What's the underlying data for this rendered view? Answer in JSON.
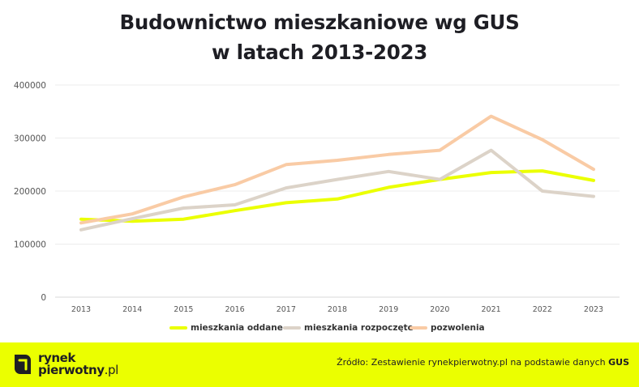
{
  "title_line1": "Budownictwo mieszkaniowe wg GUS",
  "title_line2": "w latach 2013-2023",
  "colors": {
    "background": "#ffffff",
    "footer_background": "#EBFF00",
    "grid": "#ececec",
    "axis_text": "#555555"
  },
  "chart_data": {
    "type": "line",
    "title": "Budownictwo mieszkaniowe wg GUS w latach 2013-2023",
    "categories": [
      "2013",
      "2014",
      "2015",
      "2016",
      "2017",
      "2018",
      "2019",
      "2020",
      "2021",
      "2022",
      "2023"
    ],
    "ylim": [
      0,
      400000
    ],
    "yticks": [
      0,
      100000,
      200000,
      300000,
      400000
    ],
    "ytick_labels": [
      "0",
      "100000",
      "200000",
      "300000",
      "400000"
    ],
    "grid": true,
    "legend_position": "bottom",
    "series": [
      {
        "name": "mieszkania oddane",
        "color": "#EBFF00",
        "values": [
          147000,
          143000,
          147000,
          163000,
          178000,
          185000,
          207000,
          222000,
          235000,
          238000,
          220000
        ]
      },
      {
        "name": "mieszkania rozpoczęte",
        "color": "#DCD3C8",
        "values": [
          127000,
          148000,
          168000,
          174000,
          206000,
          222000,
          237000,
          222000,
          277000,
          200000,
          190000
        ]
      },
      {
        "name": "pozwolenia",
        "color": "#F9CBA5",
        "values": [
          140000,
          157000,
          189000,
          212000,
          250000,
          258000,
          269000,
          277000,
          341000,
          297000,
          241000
        ]
      }
    ]
  },
  "footer": {
    "logo_line1": "rynek",
    "logo_line2": "pierwotny",
    "logo_domain": ".pl",
    "source_prefix": "Źródło: Zestawienie rynekpierwotny.pl na podstawie danych ",
    "source_bold": "GUS"
  }
}
